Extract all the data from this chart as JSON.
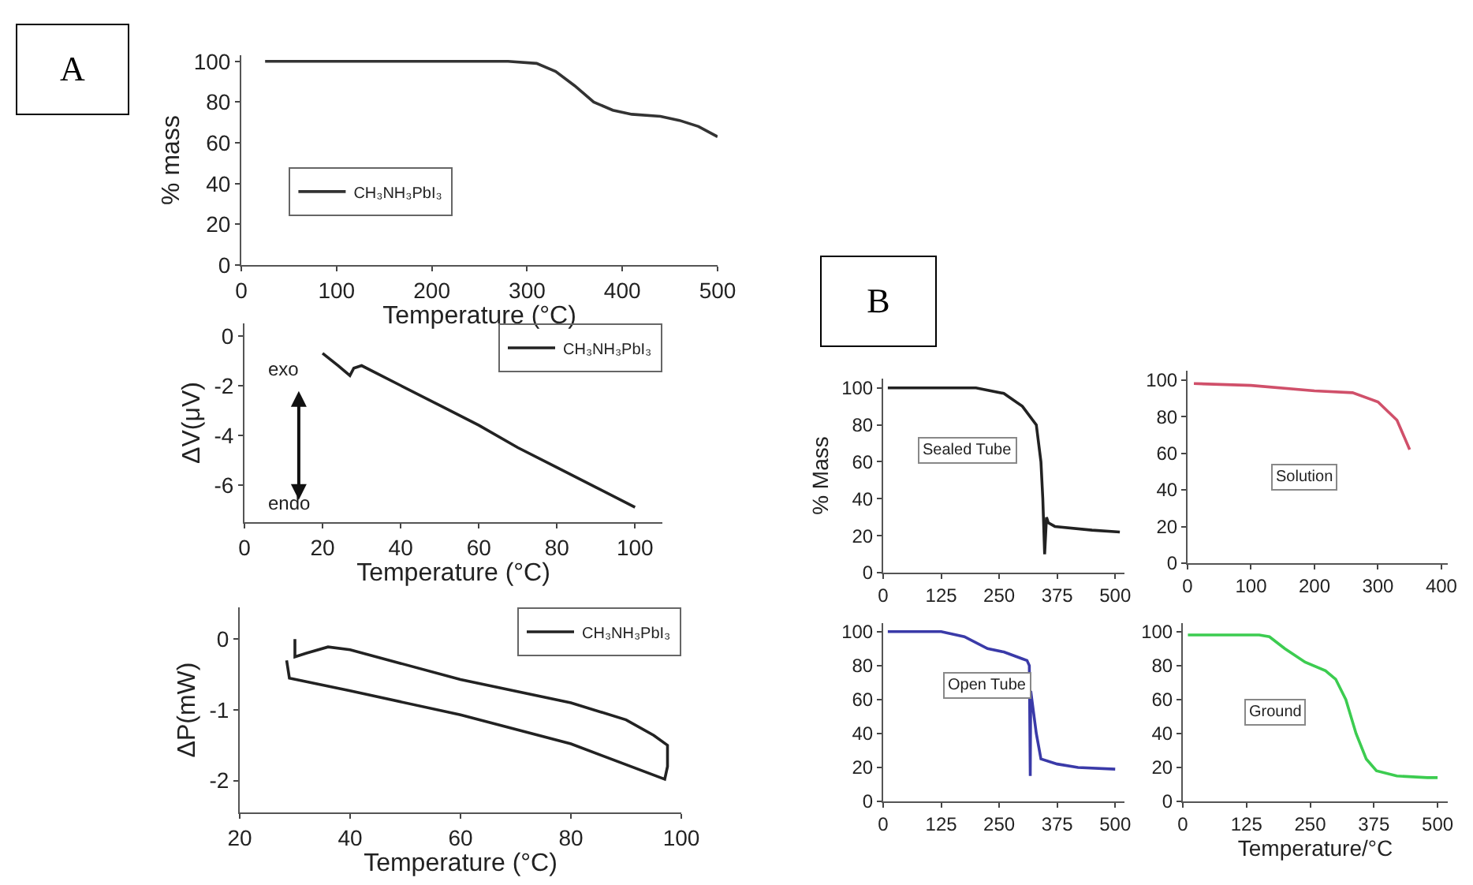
{
  "chart_data": [
    {
      "type": "line",
      "xlabel": "Temperature (°C)",
      "ylabel": "% mass",
      "annotations": [
        "A"
      ],
      "xlim": [
        0,
        500
      ],
      "ylim": [
        0,
        103
      ],
      "xticks": [
        0,
        100,
        200,
        300,
        400,
        500
      ],
      "yticks": [
        0,
        20,
        40,
        60,
        80,
        100
      ],
      "legend": "center left",
      "grid": false,
      "series": [
        {
          "name": "CH₃NH₃PbI₃",
          "color": "#333333",
          "x": [
            25,
            100,
            200,
            280,
            310,
            330,
            350,
            370,
            390,
            410,
            440,
            460,
            480,
            500
          ],
          "values": [
            100,
            100,
            100,
            100,
            99,
            95,
            88,
            80,
            76,
            74,
            73,
            71,
            68,
            63
          ]
        }
      ]
    },
    {
      "type": "line",
      "xlabel": "Temperature (°C)",
      "ylabel": "ΔV(μV)",
      "annotations": [
        "exo",
        "endo"
      ],
      "xlim": [
        0,
        107
      ],
      "ylim": [
        -7.5,
        0.5
      ],
      "xticks": [
        0,
        20,
        40,
        60,
        80,
        100
      ],
      "yticks": [
        0,
        -2,
        -4,
        -6
      ],
      "legend": "top right",
      "grid": false,
      "series": [
        {
          "name": "CH₃NH₃PbI₃",
          "color": "#222222",
          "x": [
            20,
            24,
            27,
            28,
            30,
            40,
            50,
            60,
            70,
            80,
            90,
            100
          ],
          "values": [
            -0.7,
            -1.2,
            -1.6,
            -1.3,
            -1.2,
            -2.0,
            -2.8,
            -3.6,
            -4.5,
            -5.3,
            -6.1,
            -6.9
          ]
        }
      ]
    },
    {
      "type": "line",
      "xlabel": "Temperature (°C)",
      "ylabel": "ΔP(mW)",
      "xlim": [
        20,
        100
      ],
      "ylim": [
        -2.45,
        0.45
      ],
      "xticks": [
        20,
        40,
        60,
        80,
        100
      ],
      "yticks": [
        0,
        -1,
        -2
      ],
      "legend": "top right",
      "grid": false,
      "series": [
        {
          "name": "CH₃NH₃PbI₃",
          "color": "#222222",
          "x": [
            28.5,
            29,
            40,
            60,
            80,
            97,
            97.5,
            97.5,
            95,
            90,
            80,
            60,
            40,
            36,
            32,
            30,
            30
          ],
          "values": [
            -0.3,
            -0.55,
            -0.73,
            -1.07,
            -1.48,
            -1.98,
            -1.8,
            -1.5,
            -1.36,
            -1.14,
            -0.9,
            -0.57,
            -0.15,
            -0.11,
            -0.2,
            -0.25,
            0
          ]
        }
      ]
    },
    {
      "type": "line",
      "ylabel": "% Mass",
      "annotations": [
        "B",
        "Sealed Tube"
      ],
      "xlim": [
        0,
        520
      ],
      "ylim": [
        0,
        105
      ],
      "xticks": [
        0,
        125,
        250,
        375,
        500
      ],
      "yticks": [
        0,
        20,
        40,
        60,
        80,
        100
      ],
      "grid": false,
      "series": [
        {
          "color": "#222222",
          "x": [
            10,
            200,
            260,
            300,
            330,
            340,
            344,
            348,
            352,
            356,
            370,
            450,
            510
          ],
          "values": [
            100,
            100,
            97,
            90,
            80,
            60,
            40,
            10,
            30,
            27,
            25,
            23,
            22
          ]
        }
      ]
    },
    {
      "type": "line",
      "annotations": [
        "Solution"
      ],
      "xlim": [
        0,
        410
      ],
      "ylim": [
        0,
        105
      ],
      "xticks": [
        0,
        100,
        200,
        300,
        400
      ],
      "yticks": [
        0,
        20,
        40,
        60,
        80,
        100
      ],
      "grid": false,
      "series": [
        {
          "color": "#d0506a",
          "x": [
            10,
            100,
            200,
            260,
            300,
            330,
            350
          ],
          "values": [
            98,
            97,
            94,
            93,
            88,
            78,
            62
          ]
        }
      ]
    },
    {
      "type": "line",
      "annotations": [
        "Open Tube"
      ],
      "xlim": [
        0,
        520
      ],
      "ylim": [
        0,
        105
      ],
      "xticks": [
        0,
        125,
        250,
        375,
        500
      ],
      "yticks": [
        0,
        20,
        40,
        60,
        80,
        100
      ],
      "grid": false,
      "series": [
        {
          "color": "#3a3aa8",
          "x": [
            10,
            125,
            175,
            225,
            260,
            300,
            310,
            315,
            317,
            318,
            330,
            340,
            375,
            420,
            500
          ],
          "values": [
            100,
            100,
            97,
            90,
            88,
            84,
            83,
            80,
            15,
            65,
            40,
            25,
            22,
            20,
            19
          ]
        }
      ]
    },
    {
      "type": "line",
      "xlabel": "Temperature/°C",
      "annotations": [
        "Ground"
      ],
      "xlim": [
        0,
        520
      ],
      "ylim": [
        0,
        105
      ],
      "xticks": [
        0,
        125,
        250,
        375,
        500
      ],
      "yticks": [
        0,
        20,
        40,
        60,
        80,
        100
      ],
      "grid": false,
      "series": [
        {
          "color": "#3ccc50",
          "x": [
            10,
            150,
            170,
            200,
            240,
            280,
            300,
            320,
            340,
            360,
            380,
            420,
            480,
            500
          ],
          "values": [
            98,
            98,
            97,
            90,
            82,
            77,
            72,
            60,
            40,
            25,
            18,
            15,
            14,
            14
          ]
        }
      ]
    }
  ]
}
